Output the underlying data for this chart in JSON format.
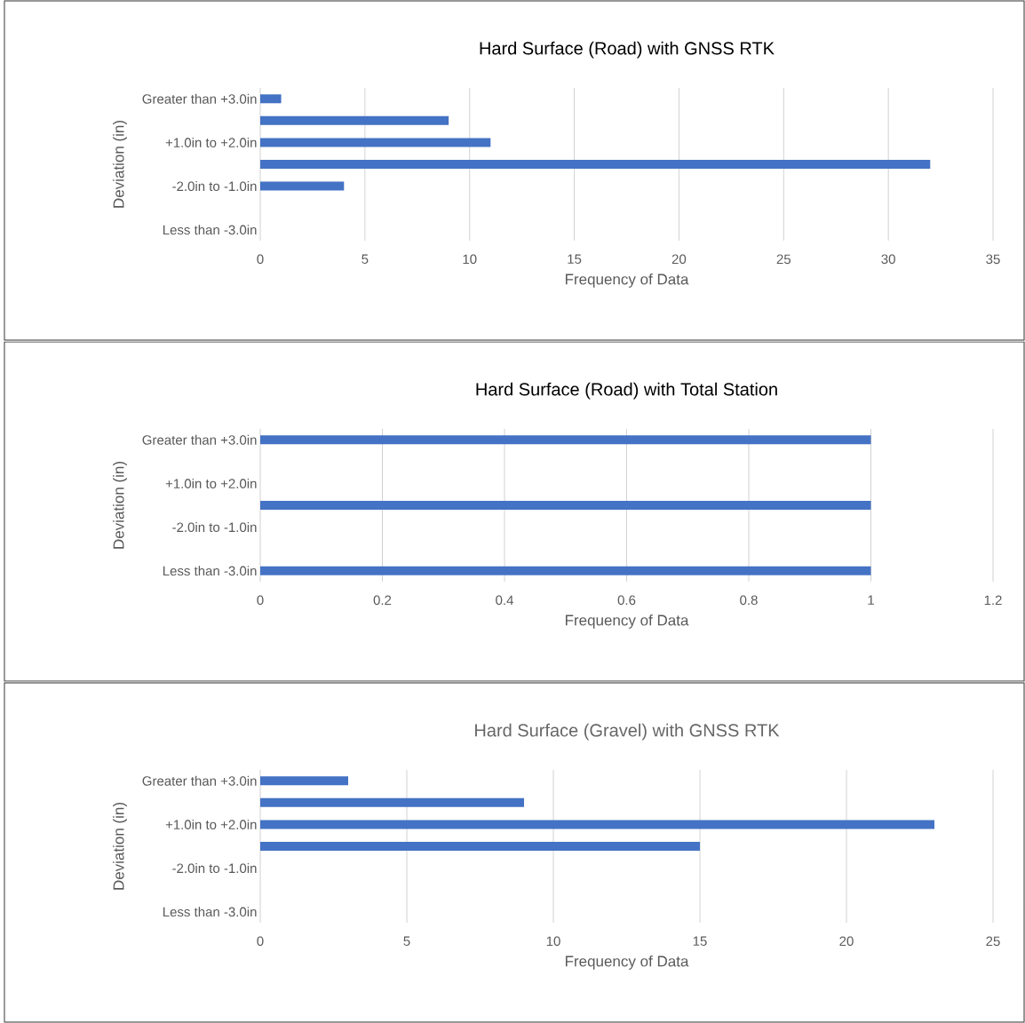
{
  "chart_data": [
    {
      "type": "bar",
      "orientation": "horizontal",
      "title": "Hard Surface (Road) with GNSS RTK",
      "xlabel": "Frequency of Data",
      "ylabel": "Deviation (in)",
      "categories": [
        "Greater than +3.0in",
        null,
        "+1.0in to +2.0in",
        null,
        "-2.0in to -1.0in",
        null,
        "Less than -3.0in"
      ],
      "values": [
        1,
        9,
        11,
        32,
        4,
        0,
        0
      ],
      "color": "#4472c4",
      "xlim": [
        0,
        35
      ],
      "xticks": [
        0,
        5,
        10,
        15,
        20,
        25,
        30,
        35
      ],
      "grid": "x"
    },
    {
      "type": "bar",
      "orientation": "horizontal",
      "title": "Hard Surface (Road) with Total Station",
      "xlabel": "Frequency of Data",
      "ylabel": "Deviation (in)",
      "categories": [
        "Greater than +3.0in",
        null,
        "+1.0in to +2.0in",
        null,
        "-2.0in to -1.0in",
        null,
        "Less than -3.0in"
      ],
      "values": [
        1,
        0,
        0,
        1,
        0,
        0,
        1
      ],
      "color": "#4472c4",
      "xlim": [
        0,
        1.2
      ],
      "xticks": [
        0,
        0.2,
        0.4,
        0.6,
        0.8,
        1,
        1.2
      ],
      "grid": "x"
    },
    {
      "type": "bar",
      "orientation": "horizontal",
      "title": "Hard Surface (Gravel) with GNSS RTK",
      "xlabel": "Frequency of Data",
      "ylabel": "Deviation (in)",
      "categories": [
        "Greater than +3.0in",
        null,
        "+1.0in to +2.0in",
        null,
        "-2.0in to -1.0in",
        null,
        "Less than -3.0in"
      ],
      "values": [
        3,
        9,
        23,
        15,
        0,
        0,
        0
      ],
      "color": "#4472c4",
      "xlim": [
        0,
        25
      ],
      "xticks": [
        0,
        5,
        10,
        15,
        20,
        25
      ],
      "grid": "x"
    }
  ]
}
